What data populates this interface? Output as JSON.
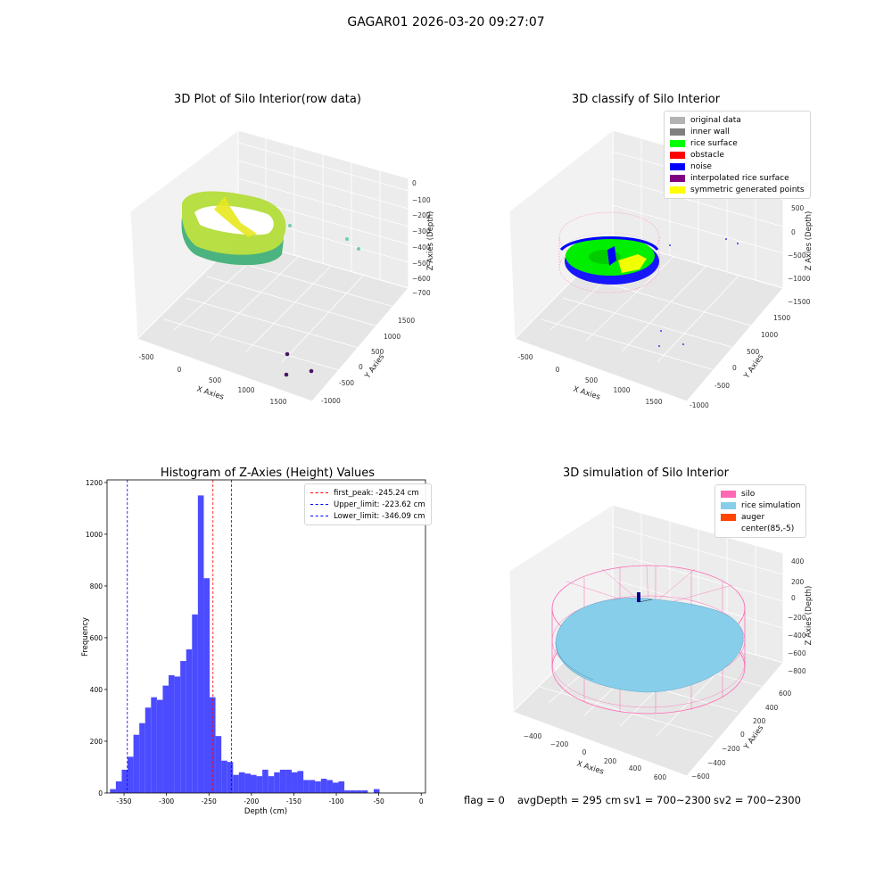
{
  "suptitle": "GAGAR01 2026-03-20 09:27:07",
  "panels": {
    "raw": {
      "title": "3D Plot of Silo Interior(row data)",
      "xlabel": "X Axies",
      "ylabel": "Y Axies",
      "zlabel": "Z Axies (Depth)",
      "xticks": [
        "-500",
        "0",
        "500",
        "1000",
        "1500"
      ],
      "yticks": [
        "1500",
        "1000",
        "500",
        "0",
        "-500",
        "-1000"
      ],
      "zticks": [
        "0",
        "−100",
        "−200",
        "−300",
        "−400",
        "−500",
        "−600",
        "−700"
      ]
    },
    "classify": {
      "title": "3D classify of Silo Interior",
      "xlabel": "X Axies",
      "ylabel": "Y Axies",
      "zlabel": "Z Axies (Depth)",
      "xticks": [
        "-500",
        "0",
        "500",
        "1000",
        "1500"
      ],
      "yticks": [
        "1500",
        "1000",
        "500",
        "0",
        "-500",
        "-1000"
      ],
      "zticks": [
        "1000",
        "500",
        "0",
        "−500",
        "−1000",
        "−1500"
      ],
      "legend": [
        {
          "label": "original data",
          "color": "#b3b3b3"
        },
        {
          "label": "inner wall",
          "color": "#808080"
        },
        {
          "label": "rice surface",
          "color": "#00ff00"
        },
        {
          "label": "obstacle",
          "color": "#ff0000"
        },
        {
          "label": "noise",
          "color": "#0000ff"
        },
        {
          "label": "interpolated rice surface",
          "color": "#800080"
        },
        {
          "label": "symmetric generated points",
          "color": "#ffff00"
        }
      ]
    },
    "simulation": {
      "title": "3D simulation of Silo Interior",
      "xlabel": "X Axies",
      "ylabel": "Y Axies",
      "zlabel": "Z Axies (Depth)",
      "xticks": [
        "−400",
        "−200",
        "0",
        "200",
        "400",
        "600"
      ],
      "yticks": [
        "600",
        "400",
        "200",
        "0",
        "−200",
        "−400",
        "−600"
      ],
      "zticks": [
        "400",
        "200",
        "0",
        "−200",
        "−400",
        "−600",
        "−800"
      ],
      "legend": [
        {
          "label": "silo",
          "color": "#ff69b4"
        },
        {
          "label": "rice simulation",
          "color": "#87ceeb"
        },
        {
          "label": "auger",
          "color": "#ff4500"
        },
        {
          "label": "center(85,-5)",
          "color": ""
        }
      ]
    }
  },
  "chart_data": {
    "type": "bar",
    "title": "Histogram of Z-Axies (Height) Values",
    "xlabel": "Depth (cm)",
    "ylabel": "Frequency",
    "xlim": [
      -370,
      5
    ],
    "ylim": [
      0,
      1210
    ],
    "xticks": [
      -350,
      -300,
      -250,
      -200,
      -150,
      -100,
      -50,
      0
    ],
    "yticks": [
      0,
      200,
      400,
      600,
      800,
      1000,
      1200
    ],
    "bar_color": "#4b4bff",
    "bin_start": -366.5,
    "bin_width": 6.9,
    "values": [
      15,
      45,
      90,
      140,
      225,
      270,
      330,
      370,
      360,
      415,
      455,
      450,
      510,
      555,
      690,
      1150,
      830,
      370,
      220,
      125,
      120,
      70,
      80,
      75,
      70,
      65,
      90,
      65,
      80,
      90,
      90,
      80,
      85,
      50,
      50,
      45,
      55,
      50,
      40,
      45,
      10,
      10,
      10,
      10,
      0,
      15
    ],
    "lines": [
      {
        "label": "first_peak: -245.24 cm",
        "x": -245.24,
        "color": "#ff0000"
      },
      {
        "label": "Upper_limit: -223.62 cm",
        "x": -223.62,
        "color": "#0000ff"
      },
      {
        "label": "Lower_limit: -346.09 cm",
        "x": -346.09,
        "color": "#0000ff"
      }
    ]
  },
  "footer": {
    "flag": "flag = 0",
    "avg": "avgDepth = 295 cm",
    "sv1": "sv1 = 700~2300",
    "sv2": "sv2 = 700~2300"
  }
}
